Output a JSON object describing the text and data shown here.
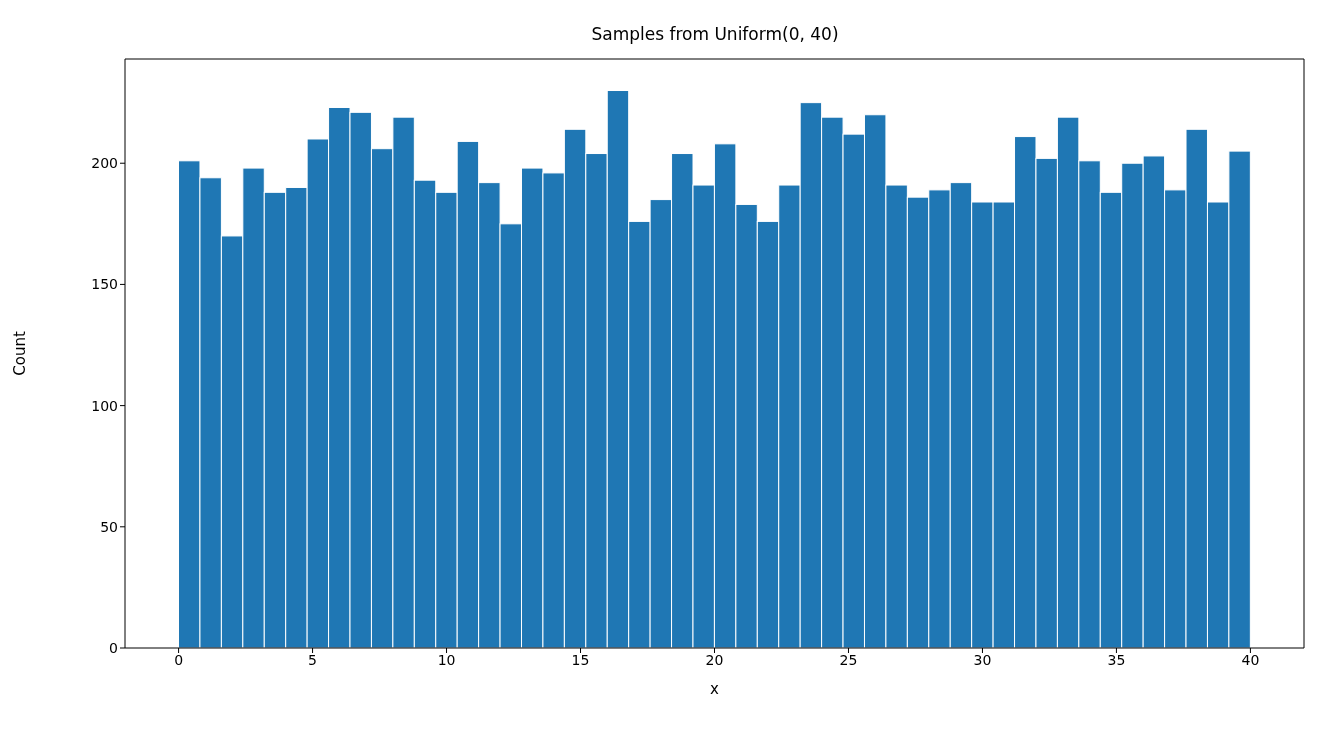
{
  "chart_data": {
    "type": "histogram",
    "title": "Samples from Uniform(0, 40)",
    "xlabel": "x",
    "ylabel": "Count",
    "color": "#1f77b4",
    "bins": [
      0,
      0.8,
      1.6,
      2.4,
      3.2,
      4,
      4.8,
      5.6,
      6.4,
      7.2,
      8,
      8.8,
      9.6,
      10.4,
      11.2,
      12,
      12.8,
      13.6,
      14.4,
      15.2,
      16,
      16.8,
      17.6,
      18.4,
      19.2,
      20,
      20.8,
      21.6,
      22.4,
      23.2,
      24,
      24.8,
      25.6,
      26.4,
      27.2,
      28,
      28.8,
      29.6,
      30.4,
      31.2,
      32,
      32.8,
      33.6,
      34.4,
      35.2,
      36,
      36.8,
      37.6,
      38.4,
      39.2,
      40
    ],
    "values": [
      201,
      194,
      170,
      198,
      188,
      190,
      210,
      223,
      221,
      206,
      219,
      193,
      188,
      209,
      192,
      175,
      198,
      196,
      214,
      204,
      230,
      176,
      185,
      204,
      191,
      208,
      183,
      176,
      191,
      225,
      219,
      212,
      220,
      191,
      186,
      189,
      192,
      184,
      184,
      211,
      202,
      219,
      201,
      188,
      200,
      203,
      189,
      214,
      184,
      205
    ],
    "xlim": [
      -2,
      42
    ],
    "xticks": [
      0,
      5,
      10,
      15,
      20,
      25,
      30,
      35,
      40
    ],
    "ylim": [
      0,
      243
    ],
    "yticks": [
      0,
      50,
      100,
      150,
      200
    ],
    "grid": false
  }
}
